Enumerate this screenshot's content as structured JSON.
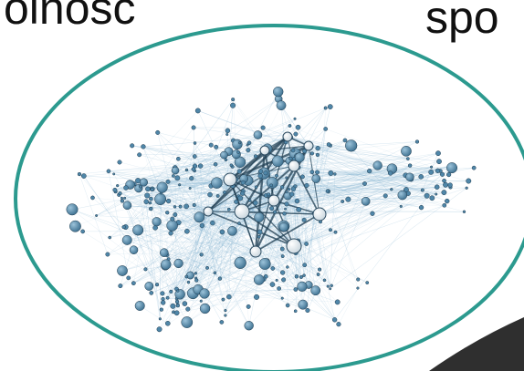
{
  "slide": {
    "text_fragment_left": "olność",
    "text_fragment_right": "spo"
  },
  "network": {
    "ellipse_stroke_color": "#2c9a8f",
    "edge_color": "#7fb0cf",
    "node_fill_color": "#4f86a8",
    "hub_fill_color": "#ffffff",
    "dark_corner_color": "#2f2f2f"
  }
}
